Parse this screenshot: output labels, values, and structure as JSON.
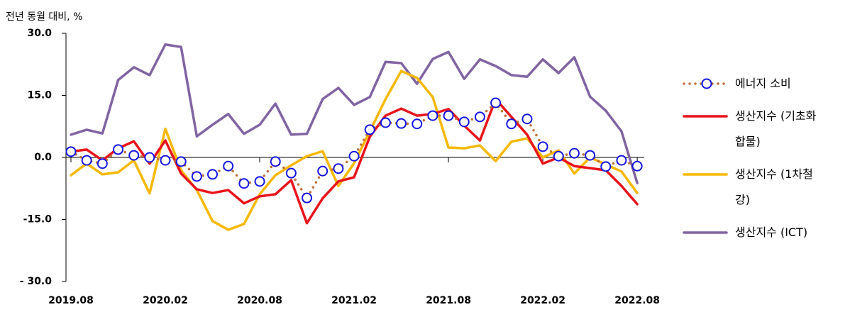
{
  "chart_data": {
    "type": "line",
    "title": "전년 동월 대비, %",
    "categories": [
      "2019.08",
      null,
      null,
      null,
      null,
      null,
      "2020.02",
      null,
      null,
      null,
      null,
      null,
      "2020.08",
      null,
      null,
      null,
      null,
      null,
      "2021.02",
      null,
      null,
      null,
      null,
      null,
      "2021.08",
      null,
      null,
      null,
      null,
      null,
      "2022.02",
      null,
      null,
      null,
      null,
      null,
      "2022.08"
    ],
    "ylim": [
      -30,
      30
    ],
    "yticks": [
      {
        "value": -30,
        "label": "- 30.0"
      },
      {
        "value": -15,
        "label": "-15.0"
      },
      {
        "value": 0,
        "label": "0.0"
      },
      {
        "value": 15,
        "label": "15.0"
      },
      {
        "value": 30,
        "label": "30.0"
      }
    ],
    "legend": "right",
    "series": [
      {
        "name": "생산지수 (ICT)",
        "color": "#8064a2",
        "style": "solid",
        "values": [
          5.5,
          6.7,
          5.8,
          18.7,
          21.8,
          19.9,
          27.3,
          26.7,
          5.1,
          7.9,
          10.5,
          5.7,
          7.9,
          13.0,
          5.5,
          5.7,
          14.1,
          16.8,
          12.7,
          14.6,
          23.1,
          22.8,
          17.8,
          23.8,
          25.5,
          19.0,
          23.7,
          22.1,
          19.9,
          19.5,
          23.7,
          20.4,
          24.2,
          14.7,
          11.3,
          6.3,
          -6.2
        ]
      },
      {
        "name": "생산지수 (1차철강)",
        "color": "#f5b800",
        "style": "solid",
        "values": [
          -4.3,
          -1.5,
          -4.1,
          -3.6,
          -0.7,
          -8.7,
          6.9,
          -3.1,
          -7.9,
          -15.4,
          -17.5,
          -16.1,
          -8.9,
          -4.3,
          -1.9,
          0.3,
          1.5,
          -6.9,
          -1.4,
          6.3,
          14.1,
          20.9,
          19.2,
          14.6,
          2.4,
          2.2,
          2.9,
          -0.9,
          3.8,
          4.6,
          0.0,
          1.7,
          -3.9,
          0.0,
          -1.7,
          -3.4,
          -8.6
        ]
      },
      {
        "name": "생산지수 (기초화합물)",
        "color": "#e8141b",
        "style": "solid",
        "values": [
          1.4,
          1.9,
          -0.7,
          2.2,
          3.9,
          -1.5,
          4.1,
          -3.9,
          -7.7,
          -8.6,
          -7.9,
          -11.1,
          -9.4,
          -8.9,
          -5.5,
          -15.9,
          -9.9,
          -5.8,
          -4.8,
          5.0,
          10.1,
          11.8,
          10.1,
          10.5,
          11.7,
          7.7,
          4.1,
          14.1,
          9.8,
          5.5,
          -1.5,
          0.0,
          -2.1,
          -2.6,
          -3.1,
          -6.9,
          -11.3
        ]
      },
      {
        "name": "에너지 소비",
        "color": "#c0703a",
        "marker_color": "#1515e0",
        "style": "dotted",
        "values": [
          1.4,
          -0.7,
          -1.5,
          1.9,
          0.5,
          0.0,
          -0.7,
          -1.0,
          -4.6,
          -4.1,
          -2.1,
          -6.3,
          -5.8,
          -1.0,
          -3.8,
          -9.8,
          -3.3,
          -2.7,
          0.3,
          6.7,
          8.4,
          8.2,
          8.1,
          10.1,
          10.1,
          8.6,
          9.8,
          13.2,
          8.1,
          9.3,
          2.6,
          0.3,
          1.0,
          0.5,
          -2.2,
          -0.7,
          -2.1
        ]
      }
    ]
  }
}
